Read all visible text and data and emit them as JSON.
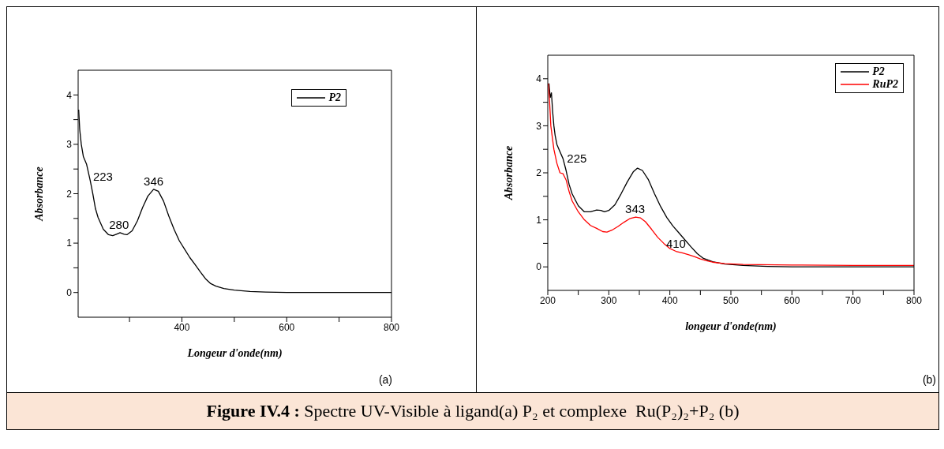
{
  "chart_data": [
    {
      "type": "line",
      "xlabel": "Longeur d'onde(nm)",
      "ylabel": "Absorbance",
      "xlim": [
        202,
        800
      ],
      "ylim": [
        -0.5,
        4.5
      ],
      "xticks": [
        {
          "value": 300,
          "label": null
        },
        400,
        {
          "value": 500,
          "label": null
        },
        600,
        {
          "value": 700,
          "label": null
        },
        800
      ],
      "yticks": [
        0,
        {
          "value": 0.5,
          "label": null
        },
        1,
        {
          "value": 1.5,
          "label": null
        },
        2,
        {
          "value": 2.5,
          "label": null
        },
        3,
        {
          "value": 3.5,
          "label": null
        },
        4
      ],
      "grid": false,
      "legend": "top right",
      "marker": "none",
      "line_style": "solid",
      "annotations": [
        "(a)",
        {
          "text": "223",
          "x": 223,
          "y": 2.35
        },
        {
          "text": "280",
          "x": 280,
          "y": 1.21
        },
        {
          "text": "346",
          "x": 346,
          "y": 2.09
        },
        "Figure IV.4 : Spectre UV-Visible à ligand(a) P₂ et complexe  Ru(P₂)₂+P₂ (b)"
      ],
      "series": [
        {
          "name": "P2",
          "color": "#000000",
          "x": [
            203,
            205,
            208,
            212,
            218,
            225,
            230,
            235,
            240,
            250,
            260,
            268,
            275,
            282,
            290,
            295,
            305,
            315,
            325,
            335,
            346,
            355,
            365,
            375,
            385,
            395,
            405,
            415,
            425,
            435,
            445,
            455,
            465,
            480,
            500,
            530,
            560,
            600,
            700,
            800
          ],
          "values": [
            3.7,
            3.3,
            3.0,
            2.75,
            2.6,
            2.27,
            2.0,
            1.7,
            1.52,
            1.28,
            1.17,
            1.15,
            1.18,
            1.21,
            1.18,
            1.17,
            1.25,
            1.45,
            1.72,
            1.95,
            2.09,
            2.05,
            1.85,
            1.55,
            1.28,
            1.05,
            0.88,
            0.71,
            0.57,
            0.42,
            0.28,
            0.18,
            0.13,
            0.08,
            0.05,
            0.02,
            0.01,
            0,
            0,
            0
          ]
        }
      ]
    },
    {
      "type": "line",
      "xlabel": "longeur d'onde(nm)",
      "ylabel": "Absorbance",
      "xlim": [
        200,
        800
      ],
      "ylim": [
        -0.5,
        4.5
      ],
      "xticks": [
        200,
        {
          "value": 250,
          "label": null
        },
        300,
        {
          "value": 350,
          "label": null
        },
        400,
        {
          "value": 450,
          "label": null
        },
        500,
        {
          "value": 550,
          "label": null
        },
        600,
        {
          "value": 650,
          "label": null
        },
        700,
        {
          "value": 750,
          "label": null
        },
        800
      ],
      "yticks": [
        0,
        {
          "value": 0.5,
          "label": null
        },
        1,
        {
          "value": 1.5,
          "label": null
        },
        2,
        {
          "value": 2.5,
          "label": null
        },
        3,
        {
          "value": 3.5,
          "label": null
        },
        4
      ],
      "grid": false,
      "legend": "top right",
      "marker": "none",
      "line_style": "solid",
      "annotations": [
        "(b)",
        {
          "text": "225",
          "x": 225,
          "y": 2.3
        },
        {
          "text": "343",
          "x": 343,
          "y": 1.06
        },
        {
          "text": "410",
          "x": 410,
          "y": 0.33
        }
      ],
      "series": [
        {
          "name": "P2",
          "color": "#000000",
          "x": [
            202,
            204,
            206,
            208,
            210,
            212,
            215,
            220,
            225,
            230,
            235,
            240,
            250,
            260,
            270,
            280,
            287,
            293,
            300,
            310,
            320,
            330,
            340,
            347,
            355,
            365,
            375,
            385,
            395,
            405,
            415,
            425,
            435,
            445,
            455,
            470,
            490,
            520,
            560,
            600,
            700,
            800
          ],
          "values": [
            3.9,
            3.6,
            3.7,
            3.3,
            3.0,
            2.8,
            2.6,
            2.45,
            2.3,
            2.05,
            1.75,
            1.55,
            1.3,
            1.17,
            1.17,
            1.21,
            1.2,
            1.17,
            1.2,
            1.32,
            1.55,
            1.8,
            2.02,
            2.1,
            2.05,
            1.85,
            1.55,
            1.28,
            1.05,
            0.87,
            0.72,
            0.57,
            0.42,
            0.28,
            0.18,
            0.11,
            0.06,
            0.03,
            0.01,
            0,
            0,
            0
          ]
        },
        {
          "name": "RuP2",
          "color": "#ff0000",
          "x": [
            201,
            203,
            205,
            207,
            210,
            215,
            220,
            225,
            230,
            235,
            240,
            250,
            260,
            270,
            280,
            290,
            297,
            305,
            315,
            325,
            335,
            344,
            352,
            360,
            370,
            380,
            390,
            400,
            410,
            420,
            430,
            440,
            450,
            460,
            470,
            490,
            520,
            600,
            700,
            800
          ],
          "values": [
            3.9,
            3.5,
            3.0,
            2.8,
            2.5,
            2.2,
            2.0,
            1.98,
            1.85,
            1.6,
            1.4,
            1.17,
            1.0,
            0.88,
            0.82,
            0.75,
            0.74,
            0.78,
            0.86,
            0.95,
            1.03,
            1.06,
            1.04,
            0.96,
            0.8,
            0.63,
            0.5,
            0.39,
            0.33,
            0.3,
            0.26,
            0.22,
            0.17,
            0.13,
            0.1,
            0.07,
            0.05,
            0.04,
            0.03,
            0.03
          ]
        }
      ]
    }
  ]
}
